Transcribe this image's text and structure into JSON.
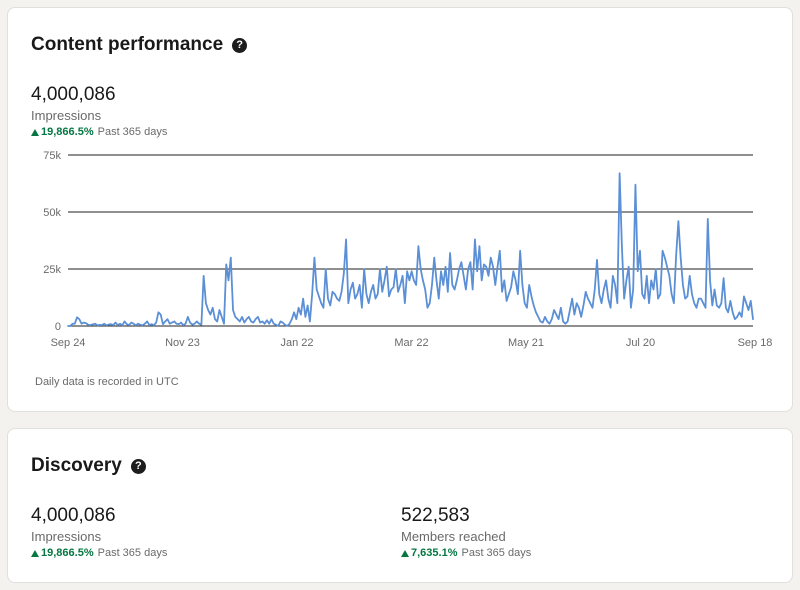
{
  "content_performance": {
    "title": "Content performance",
    "help_icon": "question-circle-icon",
    "metric": {
      "value": "4,000,086",
      "label": "Impressions",
      "change": "19,866.5%",
      "period": "Past 365 days"
    },
    "footnote": "Daily data is recorded in UTC"
  },
  "chart_data": {
    "type": "line",
    "title": "",
    "xlabel": "",
    "ylabel": "",
    "ylim": [
      0,
      75000
    ],
    "y_ticks": [
      "0",
      "25k",
      "50k",
      "75k"
    ],
    "x_ticks": [
      "Sep 24",
      "Nov 23",
      "Jan 22",
      "Mar 22",
      "May 21",
      "Jul 20",
      "Sep 18"
    ],
    "grid": true,
    "line_color": "#5b8fd6",
    "series": [
      {
        "name": "",
        "values": [
          0,
          0,
          1000,
          1000,
          3800,
          3000,
          1000,
          1500,
          1200,
          500,
          400,
          700,
          1000,
          300,
          500,
          400,
          1000,
          300,
          600,
          800,
          400,
          1500,
          400,
          1000,
          300,
          2000,
          800,
          400,
          1500,
          1000,
          300,
          1000,
          500,
          300,
          1000,
          2000,
          400,
          800,
          300,
          1500,
          6000,
          5000,
          800,
          2000,
          3000,
          1000,
          1500,
          2000,
          1000,
          800,
          1500,
          400,
          1000,
          4000,
          1500,
          600,
          1000,
          2000,
          1000,
          500,
          22000,
          10000,
          7000,
          5000,
          8000,
          3000,
          2000,
          7000,
          4000,
          1000,
          27000,
          20000,
          30000,
          7000,
          4000,
          3000,
          2000,
          4000,
          1500,
          3000,
          4000,
          2000,
          1500,
          3000,
          4000,
          1500,
          2000,
          1000,
          2500,
          1000,
          3000,
          1000,
          500,
          0,
          2000,
          1500,
          500,
          0,
          1000,
          3000,
          6000,
          3000,
          8000,
          5000,
          12000,
          4000,
          9000,
          2000,
          14000,
          30000,
          16000,
          13000,
          10000,
          8000,
          25000,
          12000,
          9000,
          15000,
          14000,
          12000,
          11000,
          15000,
          23000,
          38000,
          10000,
          16000,
          19000,
          12000,
          14000,
          18000,
          8000,
          25000,
          14000,
          10000,
          15000,
          18000,
          12000,
          14000,
          25000,
          15000,
          20000,
          26000,
          13000,
          16000,
          17000,
          25000,
          15000,
          18000,
          22000,
          10000,
          24000,
          20000,
          24000,
          20000,
          18000,
          35000,
          25000,
          20000,
          16000,
          8000,
          10000,
          18000,
          30000,
          20000,
          12000,
          24000,
          18000,
          26000,
          15000,
          32000,
          18000,
          16000,
          20000,
          25000,
          28000,
          22000,
          16000,
          25000,
          28000,
          16000,
          38000,
          24000,
          35000,
          20000,
          27000,
          26000,
          22000,
          30000,
          26000,
          18000,
          26000,
          33000,
          15000,
          20000,
          11000,
          14000,
          17000,
          24000,
          20000,
          14000,
          33000,
          18000,
          10000,
          8000,
          18000,
          13000,
          9000,
          6000,
          4000,
          2000,
          1500,
          4000,
          2000,
          1000,
          3000,
          7000,
          5000,
          3000,
          8000,
          2000,
          1000,
          2000,
          7000,
          12000,
          5000,
          10000,
          8000,
          4000,
          9000,
          15000,
          12000,
          10000,
          8000,
          16000,
          29000,
          14000,
          10000,
          16000,
          20000,
          12000,
          8000,
          22000,
          18000,
          10000,
          67000,
          35000,
          12000,
          20000,
          26000,
          8000,
          16000,
          62000,
          24000,
          33000,
          14000,
          12000,
          22000,
          10000,
          20000,
          16000,
          25000,
          12000,
          14000,
          33000,
          30000,
          26000,
          22000,
          14000,
          10000,
          31000,
          46000,
          30000,
          18000,
          12000,
          13000,
          22000,
          14000,
          10000,
          8000,
          12000,
          12000,
          10000,
          8000,
          47000,
          20000,
          9000,
          16000,
          9000,
          8000,
          10000,
          21000,
          8000,
          6000,
          11000,
          6000,
          3000,
          4000,
          6000,
          4000,
          13000,
          10000,
          7000,
          11000,
          3000
        ]
      }
    ]
  },
  "discovery": {
    "title": "Discovery",
    "help_icon": "question-circle-icon",
    "metrics": [
      {
        "value": "4,000,086",
        "label": "Impressions",
        "change": "19,866.5%",
        "period": "Past 365 days"
      },
      {
        "value": "522,583",
        "label": "Members reached",
        "change": "7,635.1%",
        "period": "Past 365 days"
      }
    ]
  },
  "colors": {
    "positive": "#057642",
    "line": "#5b8fd6",
    "grid": "#1f1f1f"
  }
}
